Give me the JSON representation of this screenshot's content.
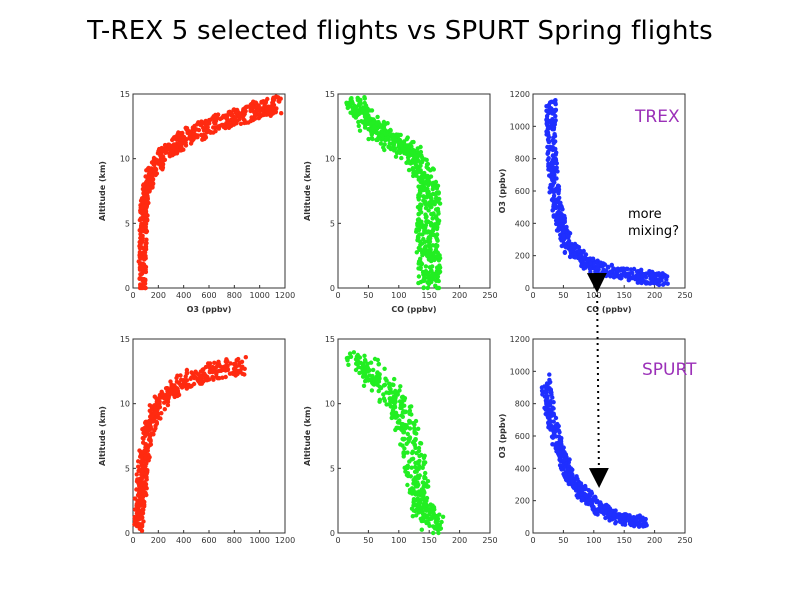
{
  "title": "T-REX 5 selected flights vs SPURT Spring flights",
  "labels": {
    "trex": "TREX",
    "spurt": "SPURT",
    "annotation_line1": "more",
    "annotation_line2": "mixing?"
  },
  "colors": {
    "o3": "#ff2a10",
    "co": "#22ee22",
    "scatter": "#1f2fff",
    "label": "#9b30b8"
  },
  "chart_data": [
    {
      "id": "trex-o3-alt",
      "type": "scatter",
      "color": "#ff2a10",
      "xlabel": "O3 (ppbv)",
      "ylabel": "Altitude (km)",
      "xlim": [
        0,
        1200
      ],
      "ylim": [
        0,
        15
      ],
      "xticks": [
        "0",
        "200",
        "400",
        "600",
        "800",
        "1000",
        "1200"
      ],
      "yticks": [
        "0",
        "5",
        "10",
        "15"
      ],
      "curve": [
        [
          70,
          0
        ],
        [
          80,
          3
        ],
        [
          85,
          6
        ],
        [
          100,
          7.5
        ],
        [
          150,
          9
        ],
        [
          250,
          10.5
        ],
        [
          400,
          11.5
        ],
        [
          600,
          12.5
        ],
        [
          800,
          13.2
        ],
        [
          1000,
          13.8
        ],
        [
          1150,
          14.2
        ]
      ],
      "spread": [
        30,
        0.7
      ]
    },
    {
      "id": "trex-co-alt",
      "type": "scatter",
      "color": "#22ee22",
      "xlabel": "CO (ppbv)",
      "ylabel": "Altitude (km)",
      "xlim": [
        0,
        250
      ],
      "ylim": [
        0,
        15
      ],
      "xticks": [
        "0",
        "50",
        "100",
        "150",
        "200",
        "250"
      ],
      "yticks": [
        "0",
        "5",
        "10",
        "15"
      ],
      "curve": [
        [
          30,
          14.5
        ],
        [
          45,
          13
        ],
        [
          70,
          12
        ],
        [
          100,
          11
        ],
        [
          130,
          10
        ],
        [
          150,
          8
        ],
        [
          150,
          6
        ],
        [
          145,
          4
        ],
        [
          150,
          2
        ],
        [
          150,
          0
        ]
      ],
      "spread": [
        18,
        0.6
      ]
    },
    {
      "id": "trex-co-o3",
      "type": "scatter",
      "color": "#1f2fff",
      "xlabel": "CO (ppbv)",
      "ylabel": "O3 (ppbv)",
      "xlim": [
        0,
        250
      ],
      "ylim": [
        0,
        1200
      ],
      "xticks": [
        "0",
        "50",
        "100",
        "150",
        "200",
        "250"
      ],
      "yticks": [
        "0",
        "200",
        "400",
        "600",
        "800",
        "1000",
        "1200"
      ],
      "curve": [
        [
          30,
          1150
        ],
        [
          30,
          900
        ],
        [
          35,
          600
        ],
        [
          45,
          400
        ],
        [
          60,
          250
        ],
        [
          90,
          150
        ],
        [
          130,
          100
        ],
        [
          180,
          70
        ],
        [
          220,
          50
        ]
      ],
      "spread": [
        8,
        40
      ]
    },
    {
      "id": "spurt-o3-alt",
      "type": "scatter",
      "color": "#ff2a10",
      "xlabel": "",
      "ylabel": "Altitude (km)",
      "xlim": [
        0,
        1200
      ],
      "ylim": [
        0,
        15
      ],
      "xticks": [
        "0",
        "200",
        "400",
        "600",
        "800",
        "1000",
        "1200"
      ],
      "yticks": [
        "0",
        "5",
        "10",
        "15"
      ],
      "curve": [
        [
          40,
          0.5
        ],
        [
          60,
          3
        ],
        [
          80,
          5
        ],
        [
          120,
          8
        ],
        [
          200,
          10
        ],
        [
          350,
          11.5
        ],
        [
          600,
          12.5
        ],
        [
          900,
          13
        ]
      ],
      "spread": [
        40,
        0.7
      ]
    },
    {
      "id": "spurt-co-alt",
      "type": "scatter",
      "color": "#22ee22",
      "xlabel": "",
      "ylabel": "Altitude (km)",
      "xlim": [
        0,
        250
      ],
      "ylim": [
        0,
        15
      ],
      "xticks": [
        "0",
        "50",
        "100",
        "150",
        "200",
        "250"
      ],
      "yticks": [
        "0",
        "5",
        "10",
        "15"
      ],
      "curve": [
        [
          30,
          13.5
        ],
        [
          60,
          12
        ],
        [
          100,
          10
        ],
        [
          120,
          7
        ],
        [
          130,
          4
        ],
        [
          140,
          2
        ],
        [
          160,
          0.3
        ]
      ],
      "spread": [
        18,
        0.8
      ]
    },
    {
      "id": "spurt-co-o3",
      "type": "scatter",
      "color": "#1f2fff",
      "xlabel": "",
      "ylabel": "O3 (ppbv)",
      "xlim": [
        0,
        250
      ],
      "ylim": [
        0,
        1200
      ],
      "xticks": [
        "0",
        "50",
        "100",
        "150",
        "200",
        "250"
      ],
      "yticks": [
        "0",
        "200",
        "400",
        "600",
        "800",
        "1000",
        "1200"
      ],
      "curve": [
        [
          20,
          950
        ],
        [
          30,
          700
        ],
        [
          45,
          500
        ],
        [
          60,
          350
        ],
        [
          80,
          250
        ],
        [
          110,
          150
        ],
        [
          140,
          90
        ],
        [
          180,
          70
        ]
      ],
      "spread": [
        8,
        35
      ]
    }
  ]
}
